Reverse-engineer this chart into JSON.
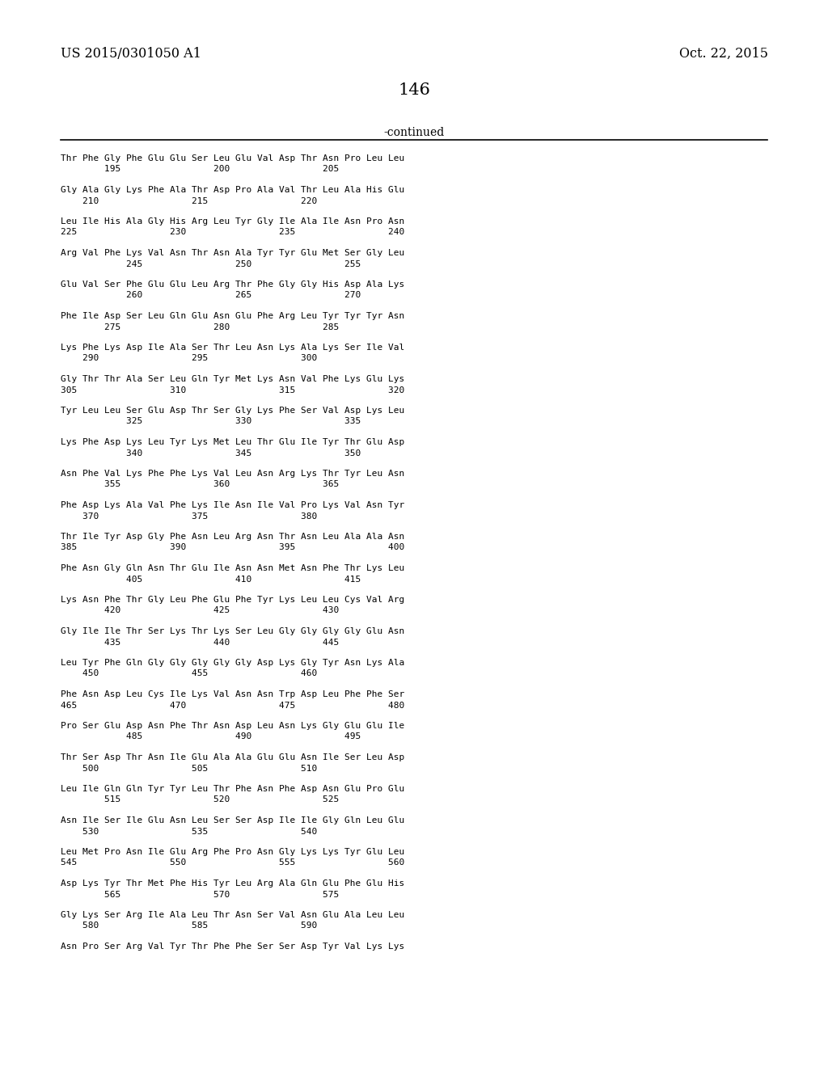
{
  "patent_number": "US 2015/0301050 A1",
  "date": "Oct. 22, 2015",
  "page_number": "146",
  "continued_label": "-continued",
  "background_color": "#ffffff",
  "text_color": "#000000",
  "sequences": [
    [
      "Thr Phe Gly Phe Glu Glu Ser Leu Glu Val Asp Thr Asn Pro Leu Leu",
      "        195                 200                 205"
    ],
    [
      "Gly Ala Gly Lys Phe Ala Thr Asp Pro Ala Val Thr Leu Ala His Glu",
      "    210                 215                 220"
    ],
    [
      "Leu Ile His Ala Gly His Arg Leu Tyr Gly Ile Ala Ile Asn Pro Asn",
      "225                 230                 235                 240"
    ],
    [
      "Arg Val Phe Lys Val Asn Thr Asn Ala Tyr Tyr Glu Met Ser Gly Leu",
      "            245                 250                 255"
    ],
    [
      "Glu Val Ser Phe Glu Glu Leu Arg Thr Phe Gly Gly His Asp Ala Lys",
      "            260                 265                 270"
    ],
    [
      "Phe Ile Asp Ser Leu Gln Glu Asn Glu Phe Arg Leu Tyr Tyr Tyr Asn",
      "        275                 280                 285"
    ],
    [
      "Lys Phe Lys Asp Ile Ala Ser Thr Leu Asn Lys Ala Lys Ser Ile Val",
      "    290                 295                 300"
    ],
    [
      "Gly Thr Thr Ala Ser Leu Gln Tyr Met Lys Asn Val Phe Lys Glu Lys",
      "305                 310                 315                 320"
    ],
    [
      "Tyr Leu Leu Ser Glu Asp Thr Ser Gly Lys Phe Ser Val Asp Lys Leu",
      "            325                 330                 335"
    ],
    [
      "Lys Phe Asp Lys Leu Tyr Lys Met Leu Thr Glu Ile Tyr Thr Glu Asp",
      "            340                 345                 350"
    ],
    [
      "Asn Phe Val Lys Phe Phe Lys Val Leu Asn Arg Lys Thr Tyr Leu Asn",
      "        355                 360                 365"
    ],
    [
      "Phe Asp Lys Ala Val Phe Lys Ile Asn Ile Val Pro Lys Val Asn Tyr",
      "    370                 375                 380"
    ],
    [
      "Thr Ile Tyr Asp Gly Phe Asn Leu Arg Asn Thr Asn Leu Ala Ala Asn",
      "385                 390                 395                 400"
    ],
    [
      "Phe Asn Gly Gln Asn Thr Glu Ile Asn Asn Met Asn Phe Thr Lys Leu",
      "            405                 410                 415"
    ],
    [
      "Lys Asn Phe Thr Gly Leu Phe Glu Phe Tyr Lys Leu Leu Cys Val Arg",
      "        420                 425                 430"
    ],
    [
      "Gly Ile Ile Thr Ser Lys Thr Lys Ser Leu Gly Gly Gly Gly Glu Asn",
      "        435                 440                 445"
    ],
    [
      "Leu Tyr Phe Gln Gly Gly Gly Gly Gly Asp Lys Gly Tyr Asn Lys Ala",
      "    450                 455                 460"
    ],
    [
      "Phe Asn Asp Leu Cys Ile Lys Val Asn Asn Trp Asp Leu Phe Phe Ser",
      "465                 470                 475                 480"
    ],
    [
      "Pro Ser Glu Asp Asn Phe Thr Asn Asp Leu Asn Lys Gly Glu Glu Ile",
      "            485                 490                 495"
    ],
    [
      "Thr Ser Asp Thr Asn Ile Glu Ala Ala Glu Glu Asn Ile Ser Leu Asp",
      "    500                 505                 510"
    ],
    [
      "Leu Ile Gln Gln Tyr Tyr Leu Thr Phe Asn Phe Asp Asn Glu Pro Glu",
      "        515                 520                 525"
    ],
    [
      "Asn Ile Ser Ile Glu Asn Leu Ser Ser Asp Ile Ile Gly Gln Leu Glu",
      "    530                 535                 540"
    ],
    [
      "Leu Met Pro Asn Ile Glu Arg Phe Pro Asn Gly Lys Lys Tyr Glu Leu",
      "545                 550                 555                 560"
    ],
    [
      "Asp Lys Tyr Thr Met Phe His Tyr Leu Arg Ala Gln Glu Phe Glu His",
      "        565                 570                 575"
    ],
    [
      "Gly Lys Ser Arg Ile Ala Leu Thr Asn Ser Val Asn Glu Ala Leu Leu",
      "    580                 585                 590"
    ],
    [
      "Asn Pro Ser Arg Val Tyr Thr Phe Phe Ser Ser Asp Tyr Val Lys Lys",
      ""
    ]
  ]
}
